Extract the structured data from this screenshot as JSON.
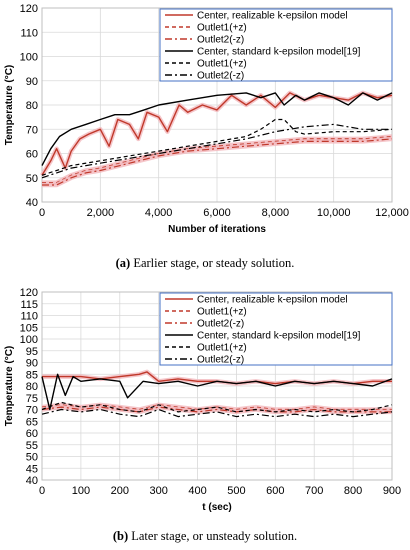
{
  "colors": {
    "realizable": "#c0392b",
    "realizable_band": "#f2b8bd",
    "standard": "#000000",
    "grid": "#d9d9d9",
    "axis": "#bfbfbf",
    "legend_border": "#4472c4"
  },
  "chart_data": [
    {
      "type": "line",
      "caption_label": "(a)",
      "caption_text": " Earlier stage, or steady solution.",
      "xlabel": "Number of iterations",
      "ylabel": "Temperature (°C)",
      "xlim": [
        0,
        12000
      ],
      "ylim": [
        40,
        120
      ],
      "xticks": [
        0,
        2000,
        4000,
        6000,
        8000,
        10000,
        12000
      ],
      "xtick_labels": [
        "0",
        "2,000",
        "4,000",
        "6,000",
        "8,000",
        "10,000",
        "12,000"
      ],
      "yticks": [
        40,
        50,
        60,
        70,
        80,
        90,
        100,
        110,
        120
      ],
      "grid": true,
      "legend_position": "top-right",
      "series": [
        {
          "name": "Center, realizable k-epsilon model",
          "group": "realizable",
          "style": "solid",
          "x": [
            0,
            300,
            500,
            800,
            1000,
            1300,
            1600,
            2000,
            2300,
            2600,
            3000,
            3300,
            3600,
            4000,
            4300,
            4700,
            5000,
            5500,
            6000,
            6500,
            7000,
            7500,
            8000,
            8500,
            9000,
            9500,
            10000,
            10500,
            11000,
            11500,
            12000
          ],
          "y": [
            51,
            57,
            62,
            54,
            61,
            66,
            68,
            70,
            63,
            74,
            72,
            66,
            77,
            75,
            69,
            80,
            77,
            80,
            78,
            84,
            80,
            84,
            79,
            85,
            82,
            84,
            83,
            82,
            85,
            83,
            84
          ]
        },
        {
          "name": "Outlet1(+z)",
          "group": "realizable",
          "style": "dashed",
          "x": [
            0,
            500,
            1000,
            1500,
            2000,
            3000,
            4000,
            5000,
            6000,
            7000,
            8000,
            9000,
            10000,
            11000,
            12000
          ],
          "y": [
            48,
            48,
            51,
            53,
            54,
            57,
            60,
            62,
            63,
            64,
            65,
            66,
            66,
            66,
            67
          ]
        },
        {
          "name": "Outlet2(-z)",
          "group": "realizable",
          "style": "dashdot",
          "x": [
            0,
            500,
            1000,
            1500,
            2000,
            3000,
            4000,
            5000,
            6000,
            7000,
            8000,
            9000,
            10000,
            11000,
            12000
          ],
          "y": [
            47,
            47,
            50,
            52,
            53,
            56,
            59,
            61,
            62,
            63,
            64,
            65,
            65,
            65,
            66
          ]
        },
        {
          "name": "Center, standard k-epsilon model[19]",
          "group": "standard",
          "style": "solid",
          "x": [
            0,
            300,
            600,
            1000,
            1500,
            2000,
            2500,
            3000,
            3500,
            4000,
            5000,
            6000,
            7000,
            7500,
            8000,
            8300,
            8700,
            9000,
            9500,
            10000,
            10500,
            11000,
            11500,
            12000
          ],
          "y": [
            55,
            62,
            67,
            70,
            72,
            74,
            76,
            76,
            78,
            80,
            82,
            84,
            85,
            83,
            85,
            80,
            84,
            82,
            85,
            83,
            80,
            85,
            82,
            85
          ]
        },
        {
          "name": "Outlet1(+z)",
          "group": "standard",
          "style": "dashed",
          "x": [
            0,
            500,
            1000,
            2000,
            3000,
            4000,
            5000,
            6000,
            7000,
            7500,
            8000,
            8300,
            8700,
            9000,
            10000,
            11000,
            12000
          ],
          "y": [
            51,
            53,
            55,
            57,
            59,
            61,
            63,
            65,
            67,
            70,
            74,
            74,
            69,
            68,
            69,
            69,
            70
          ]
        },
        {
          "name": "Outlet2(-z)",
          "group": "standard",
          "style": "dashdot",
          "x": [
            0,
            500,
            1000,
            2000,
            3000,
            4000,
            5000,
            6000,
            7000,
            8000,
            9000,
            10000,
            11000,
            12000
          ],
          "y": [
            50,
            52,
            54,
            56,
            58,
            60,
            62,
            64,
            66,
            69,
            71,
            72,
            70,
            70
          ]
        }
      ]
    },
    {
      "type": "line",
      "caption_label": "(b)",
      "caption_text": " Later stage, or unsteady solution.",
      "xlabel": "t (sec)",
      "ylabel": "Temperature (°C)",
      "xlim": [
        0,
        900
      ],
      "ylim": [
        40,
        120
      ],
      "xticks": [
        0,
        100,
        200,
        300,
        400,
        500,
        600,
        700,
        800,
        900
      ],
      "xtick_labels": [
        "0",
        "100",
        "200",
        "300",
        "400",
        "500",
        "600",
        "700",
        "800",
        "900"
      ],
      "yticks": [
        40,
        45,
        50,
        55,
        60,
        65,
        70,
        75,
        80,
        85,
        90,
        95,
        100,
        105,
        110,
        115,
        120
      ],
      "grid": true,
      "legend_position": "top-right",
      "series": [
        {
          "name": "Center, realizable k-epsilon model",
          "group": "realizable",
          "style": "solid",
          "x": [
            0,
            50,
            100,
            150,
            200,
            250,
            270,
            300,
            350,
            400,
            450,
            500,
            550,
            600,
            650,
            700,
            750,
            800,
            850,
            900
          ],
          "y": [
            84,
            84,
            84,
            83,
            84,
            85,
            86,
            82,
            83,
            82,
            82,
            81,
            82,
            81,
            82,
            81,
            82,
            81,
            82,
            82
          ]
        },
        {
          "name": "Outlet1(+z)",
          "group": "realizable",
          "style": "dashed",
          "x": [
            0,
            50,
            100,
            150,
            200,
            250,
            300,
            350,
            400,
            450,
            500,
            550,
            600,
            650,
            700,
            750,
            800,
            850,
            900
          ],
          "y": [
            71,
            72,
            71,
            72,
            71,
            70,
            72,
            71,
            70,
            71,
            70,
            71,
            70,
            70,
            71,
            70,
            70,
            70,
            70
          ]
        },
        {
          "name": "Outlet2(-z)",
          "group": "realizable",
          "style": "dashdot",
          "x": [
            0,
            50,
            100,
            150,
            200,
            250,
            300,
            350,
            400,
            450,
            500,
            550,
            600,
            650,
            700,
            750,
            800,
            850,
            900
          ],
          "y": [
            70,
            71,
            70,
            71,
            70,
            69,
            71,
            70,
            69,
            70,
            69,
            70,
            69,
            69,
            70,
            69,
            69,
            69,
            69
          ]
        },
        {
          "name": "Center, standard k-epsilon model[19]",
          "group": "standard",
          "style": "solid",
          "x": [
            0,
            20,
            40,
            60,
            80,
            100,
            150,
            200,
            220,
            260,
            300,
            350,
            400,
            450,
            500,
            550,
            600,
            650,
            700,
            750,
            800,
            850,
            900
          ],
          "y": [
            84,
            70,
            85,
            76,
            84,
            82,
            83,
            82,
            75,
            82,
            81,
            82,
            80,
            82,
            81,
            82,
            80,
            82,
            81,
            82,
            81,
            80,
            83
          ]
        },
        {
          "name": "Outlet1(+z)",
          "group": "standard",
          "style": "dashed",
          "x": [
            0,
            50,
            100,
            150,
            200,
            250,
            300,
            350,
            400,
            450,
            500,
            550,
            600,
            650,
            700,
            750,
            800,
            850,
            900
          ],
          "y": [
            70,
            73,
            71,
            72,
            70,
            69,
            72,
            69,
            70,
            71,
            69,
            70,
            69,
            70,
            69,
            70,
            69,
            70,
            72
          ]
        },
        {
          "name": "Outlet2(-z)",
          "group": "standard",
          "style": "dashdot",
          "x": [
            0,
            50,
            100,
            150,
            200,
            250,
            300,
            350,
            400,
            450,
            500,
            550,
            600,
            650,
            700,
            750,
            800,
            850,
            900
          ],
          "y": [
            68,
            70,
            69,
            70,
            68,
            67,
            70,
            67,
            68,
            69,
            67,
            68,
            67,
            68,
            67,
            68,
            67,
            68,
            69
          ]
        }
      ]
    }
  ]
}
